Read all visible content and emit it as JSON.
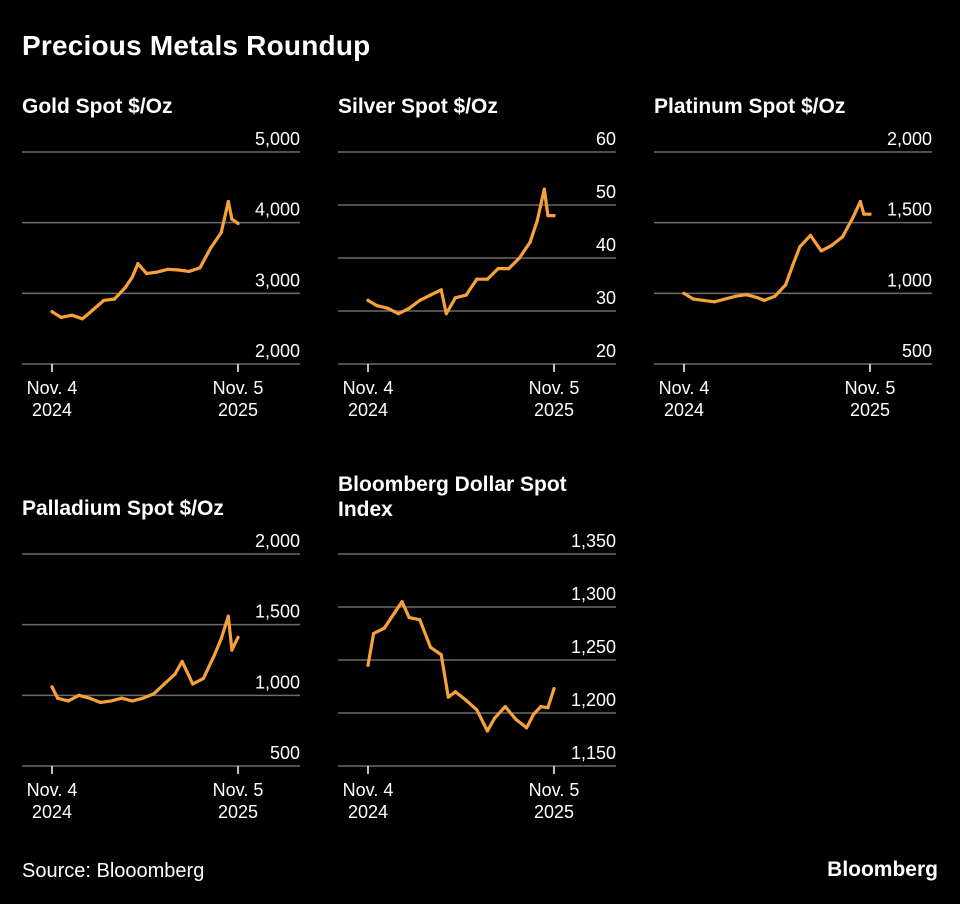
{
  "title": "Precious Metals Roundup",
  "source": "Source: Blooomberg",
  "brand": "Bloomberg",
  "colors": {
    "background": "#000000",
    "line": "#f7a13a",
    "grid": "#6b6b6b",
    "text": "#ffffff"
  },
  "chart_data": [
    {
      "type": "line",
      "title": "Gold Spot $/Oz",
      "yticks": [
        "5,000",
        "4,000",
        "3,000",
        "2,000"
      ],
      "ylim": [
        2000,
        5000
      ],
      "xticks": [
        [
          "Nov. 4",
          "2024"
        ],
        [
          "Nov. 5",
          "2025"
        ]
      ],
      "xlim": [
        "2024-11-04",
        "2025-11-05"
      ],
      "grid": true,
      "series": [
        {
          "x": [
            "2024-11-04",
            "2024-11-22",
            "2024-12-13",
            "2025-01-03",
            "2025-01-24",
            "2025-02-14",
            "2025-03-07",
            "2025-03-28",
            "2025-04-11",
            "2025-04-22",
            "2025-05-09",
            "2025-05-30",
            "2025-06-20",
            "2025-07-11",
            "2025-08-01",
            "2025-08-22",
            "2025-09-12",
            "2025-10-03",
            "2025-10-17",
            "2025-10-24",
            "2025-11-05"
          ],
          "y": [
            2740,
            2660,
            2690,
            2640,
            2770,
            2900,
            2920,
            3080,
            3230,
            3420,
            3280,
            3300,
            3340,
            3330,
            3310,
            3360,
            3640,
            3860,
            4300,
            4050,
            3990
          ]
        }
      ]
    },
    {
      "type": "line",
      "title": "Silver Spot $/Oz",
      "yticks": [
        "60",
        "50",
        "40",
        "30",
        "20"
      ],
      "ylim": [
        20,
        60
      ],
      "xticks": [
        [
          "Nov. 4",
          "2024"
        ],
        [
          "Nov. 5",
          "2025"
        ]
      ],
      "xlim": [
        "2024-11-04",
        "2025-11-05"
      ],
      "grid": true,
      "series": [
        {
          "x": [
            "2024-11-04",
            "2024-11-22",
            "2024-12-13",
            "2025-01-03",
            "2025-01-24",
            "2025-02-14",
            "2025-03-07",
            "2025-03-28",
            "2025-04-07",
            "2025-04-25",
            "2025-05-16",
            "2025-06-06",
            "2025-06-27",
            "2025-07-18",
            "2025-08-08",
            "2025-08-29",
            "2025-09-19",
            "2025-10-03",
            "2025-10-17",
            "2025-10-24",
            "2025-11-05"
          ],
          "y": [
            32,
            31,
            30.5,
            29.5,
            30.5,
            32,
            33,
            34,
            29.5,
            32.5,
            33,
            36,
            36,
            38,
            38,
            40,
            43,
            47,
            53,
            48,
            48
          ]
        }
      ]
    },
    {
      "type": "line",
      "title": "Platinum Spot $/Oz",
      "yticks": [
        "2,000",
        "1,500",
        "1,000",
        "500"
      ],
      "ylim": [
        500,
        2000
      ],
      "xticks": [
        [
          "Nov. 4",
          "2024"
        ],
        [
          "Nov. 5",
          "2025"
        ]
      ],
      "xlim": [
        "2024-11-04",
        "2025-11-05"
      ],
      "grid": true,
      "series": [
        {
          "x": [
            "2024-11-04",
            "2024-11-22",
            "2024-12-13",
            "2025-01-03",
            "2025-01-24",
            "2025-02-14",
            "2025-03-07",
            "2025-03-28",
            "2025-04-11",
            "2025-05-02",
            "2025-05-23",
            "2025-06-06",
            "2025-06-20",
            "2025-07-11",
            "2025-08-01",
            "2025-08-22",
            "2025-09-12",
            "2025-10-03",
            "2025-10-17",
            "2025-10-24",
            "2025-11-05"
          ],
          "y": [
            1000,
            960,
            950,
            940,
            960,
            980,
            990,
            970,
            950,
            980,
            1060,
            1200,
            1330,
            1410,
            1300,
            1340,
            1400,
            1540,
            1650,
            1560,
            1560
          ]
        }
      ]
    },
    {
      "type": "line",
      "title": "Palladium Spot $/Oz",
      "yticks": [
        "2,000",
        "1,500",
        "1,000",
        "500"
      ],
      "ylim": [
        500,
        2000
      ],
      "xticks": [
        [
          "Nov. 4",
          "2024"
        ],
        [
          "Nov. 5",
          "2025"
        ]
      ],
      "xlim": [
        "2024-11-04",
        "2025-11-05"
      ],
      "grid": true,
      "series": [
        {
          "x": [
            "2024-11-04",
            "2024-11-15",
            "2024-12-06",
            "2024-12-27",
            "2025-01-17",
            "2025-02-07",
            "2025-02-28",
            "2025-03-21",
            "2025-04-11",
            "2025-05-02",
            "2025-05-23",
            "2025-06-13",
            "2025-07-04",
            "2025-07-18",
            "2025-08-08",
            "2025-08-29",
            "2025-09-19",
            "2025-10-03",
            "2025-10-17",
            "2025-10-24",
            "2025-11-05"
          ],
          "y": [
            1060,
            980,
            960,
            1000,
            980,
            950,
            960,
            980,
            960,
            980,
            1010,
            1080,
            1150,
            1240,
            1080,
            1120,
            1280,
            1400,
            1560,
            1320,
            1410
          ]
        }
      ]
    },
    {
      "type": "line",
      "title": "Bloomberg Dollar Spot Index",
      "yticks": [
        "1,350",
        "1,300",
        "1,250",
        "1,200",
        "1,150"
      ],
      "ylim": [
        1150,
        1350
      ],
      "xticks": [
        [
          "Nov. 4",
          "2024"
        ],
        [
          "Nov. 5",
          "2025"
        ]
      ],
      "xlim": [
        "2024-11-04",
        "2025-11-05"
      ],
      "grid": true,
      "series": [
        {
          "x": [
            "2024-11-04",
            "2024-11-15",
            "2024-12-06",
            "2024-12-27",
            "2025-01-10",
            "2025-01-24",
            "2025-02-14",
            "2025-03-07",
            "2025-03-28",
            "2025-04-11",
            "2025-04-25",
            "2025-05-16",
            "2025-06-06",
            "2025-06-27",
            "2025-07-11",
            "2025-08-01",
            "2025-08-22",
            "2025-09-12",
            "2025-09-26",
            "2025-10-10",
            "2025-10-24",
            "2025-11-05"
          ],
          "y": [
            1245,
            1275,
            1280,
            1295,
            1305,
            1290,
            1288,
            1262,
            1255,
            1215,
            1220,
            1212,
            1203,
            1183,
            1195,
            1206,
            1194,
            1186,
            1199,
            1206,
            1205,
            1223
          ]
        }
      ]
    }
  ]
}
